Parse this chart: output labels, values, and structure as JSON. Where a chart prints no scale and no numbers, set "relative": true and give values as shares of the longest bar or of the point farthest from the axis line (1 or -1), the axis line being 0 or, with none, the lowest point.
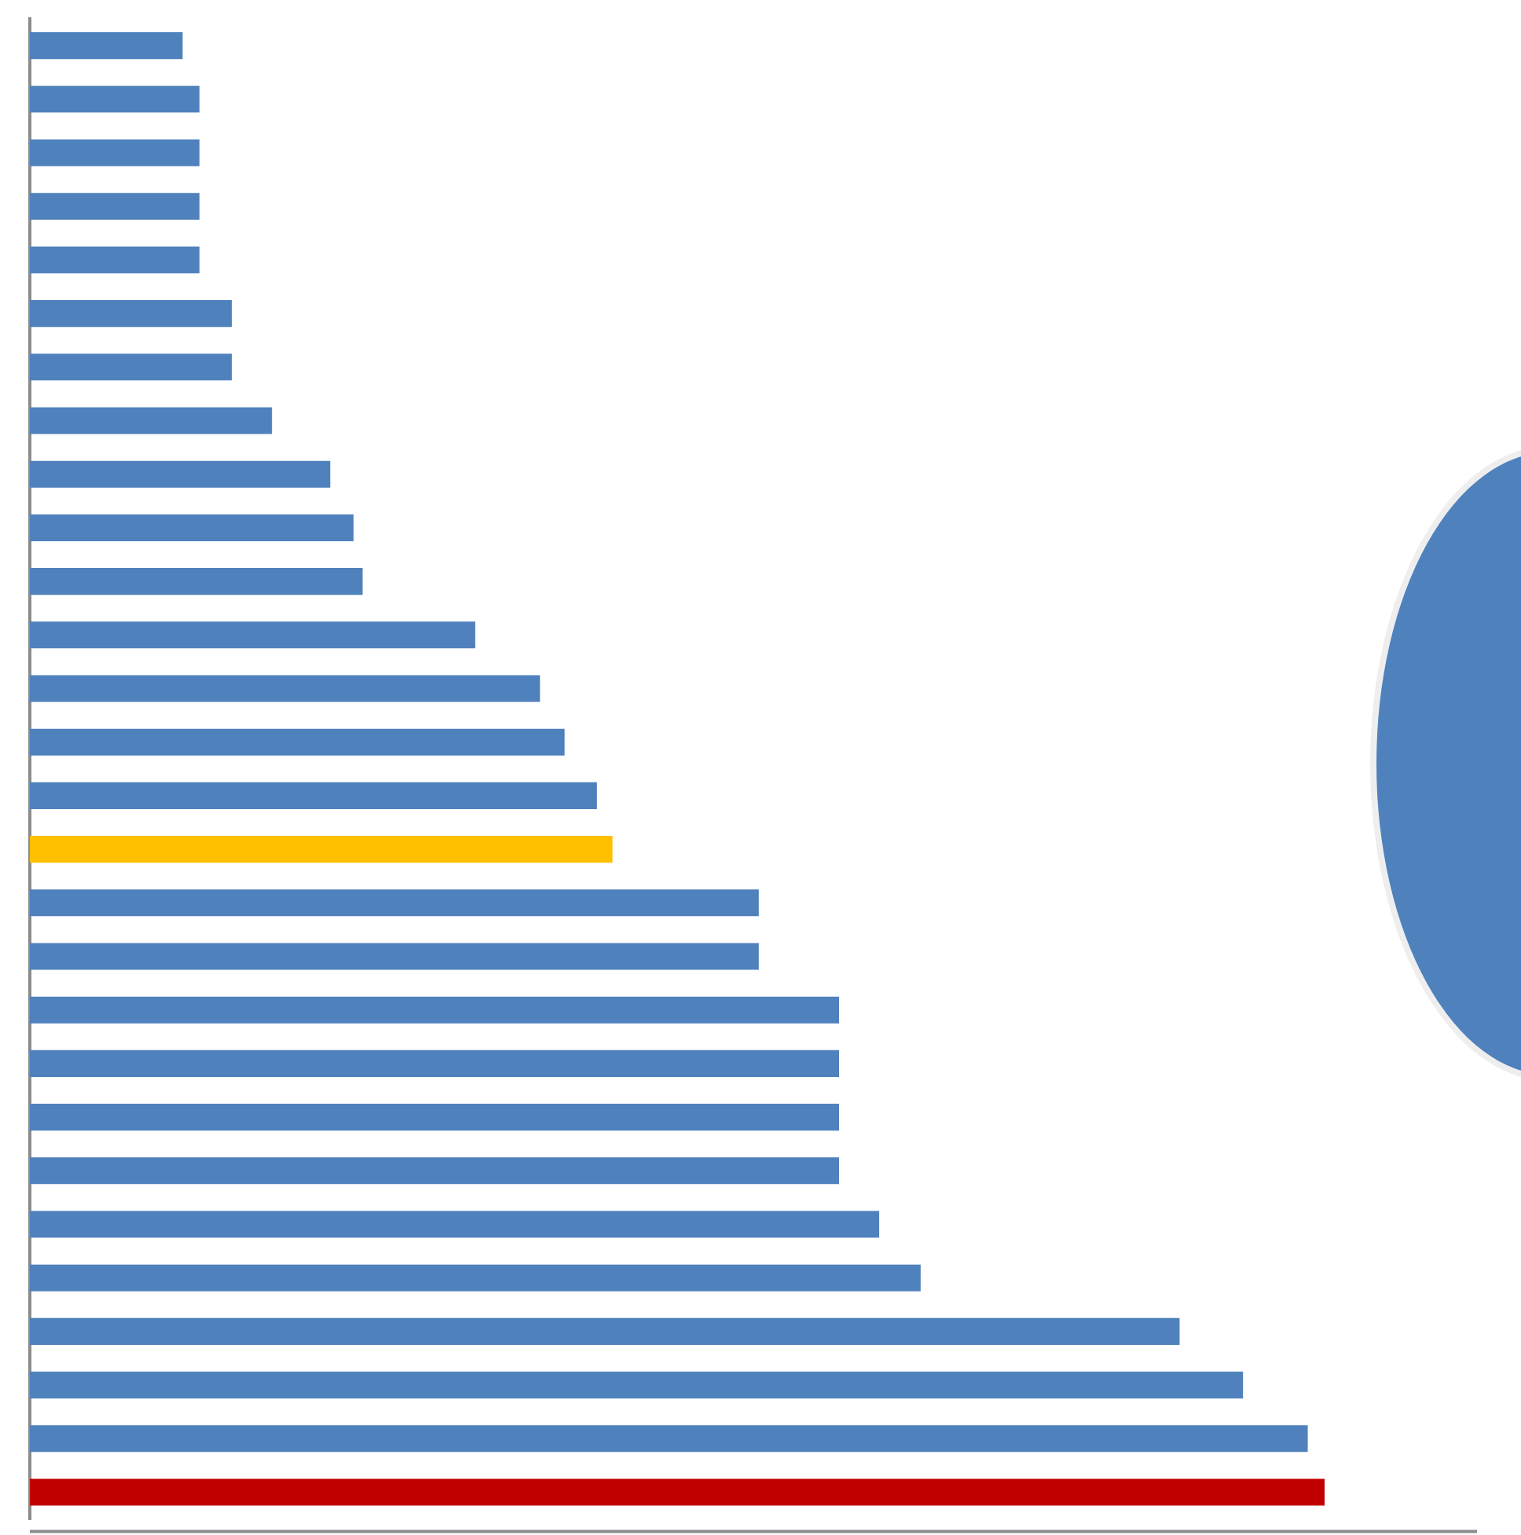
{
  "chart_data": {
    "type": "bar",
    "orientation": "horizontal",
    "relative": true,
    "categories": [
      null,
      null,
      null,
      null,
      null,
      null,
      null,
      null,
      null,
      null,
      null,
      null,
      null,
      null,
      null,
      null,
      null,
      null,
      null,
      null,
      null,
      null,
      null,
      null,
      null,
      null,
      null,
      null
    ],
    "values": [
      0.118,
      0.131,
      0.131,
      0.131,
      0.131,
      0.156,
      0.156,
      0.187,
      0.232,
      0.25,
      0.257,
      0.344,
      0.394,
      0.413,
      0.438,
      0.45,
      0.563,
      0.563,
      0.625,
      0.625,
      0.625,
      0.625,
      0.656,
      0.688,
      0.888,
      0.937,
      0.987,
      1
    ],
    "colors": [
      "#4f81bd",
      "#4f81bd",
      "#4f81bd",
      "#4f81bd",
      "#4f81bd",
      "#4f81bd",
      "#4f81bd",
      "#4f81bd",
      "#4f81bd",
      "#4f81bd",
      "#4f81bd",
      "#4f81bd",
      "#4f81bd",
      "#4f81bd",
      "#4f81bd",
      "#ffc000",
      "#4f81bd",
      "#4f81bd",
      "#4f81bd",
      "#4f81bd",
      "#4f81bd",
      "#4f81bd",
      "#4f81bd",
      "#4f81bd",
      "#4f81bd",
      "#4f81bd",
      "#4f81bd",
      "#c00000"
    ],
    "legend": false
  }
}
